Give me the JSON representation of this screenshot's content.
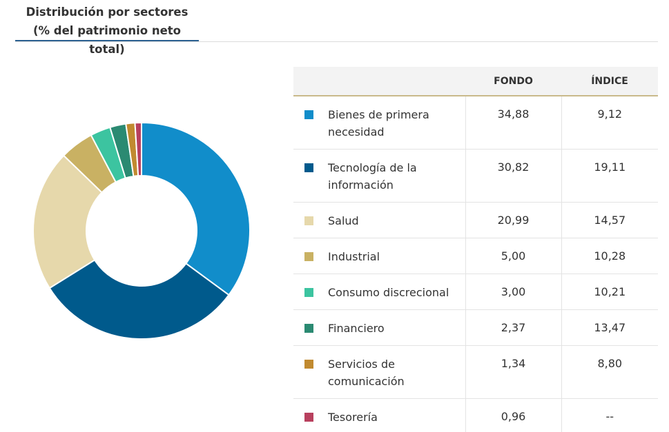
{
  "header": {
    "title_line1": "Distribución por sectores",
    "title_line2": "(% del patrimonio neto total)"
  },
  "table": {
    "col_fund": "FONDO",
    "col_index": "ÍNDICE",
    "rows": [
      {
        "label": "Bienes de primera necesidad",
        "fund": "34,88",
        "index": "9,12",
        "color": "#118dca"
      },
      {
        "label": "Tecnología de la información",
        "fund": "30,82",
        "index": "19,11",
        "color": "#005a8c"
      },
      {
        "label": "Salud",
        "fund": "20,99",
        "index": "14,57",
        "color": "#e6d8ab"
      },
      {
        "label": "Industrial",
        "fund": "5,00",
        "index": "10,28",
        "color": "#c9b163"
      },
      {
        "label": "Consumo discrecional",
        "fund": "3,00",
        "index": "10,21",
        "color": "#3cc4a0"
      },
      {
        "label": "Financiero",
        "fund": "2,37",
        "index": "13,47",
        "color": "#2b8a72"
      },
      {
        "label": "Servicios de comunicación",
        "fund": "1,34",
        "index": "8,80",
        "color": "#c18a30"
      },
      {
        "label": "Tesorería",
        "fund": "0,96",
        "index": "--",
        "color": "#b8405e"
      }
    ]
  },
  "chart_data": {
    "type": "pie",
    "donut": true,
    "title": "Distribución por sectores (% del patrimonio neto total)",
    "categories": [
      "Bienes de primera necesidad",
      "Tecnología de la información",
      "Salud",
      "Industrial",
      "Consumo discrecional",
      "Financiero",
      "Servicios de comunicación",
      "Tesorería"
    ],
    "values": [
      34.88,
      30.82,
      20.99,
      5.0,
      3.0,
      2.37,
      1.34,
      0.96
    ],
    "colors": [
      "#118dca",
      "#005a8c",
      "#e6d8ab",
      "#c9b163",
      "#3cc4a0",
      "#2b8a72",
      "#c18a30",
      "#b8405e"
    ],
    "table_series": [
      {
        "name": "FONDO",
        "values": [
          34.88,
          30.82,
          20.99,
          5.0,
          3.0,
          2.37,
          1.34,
          0.96
        ]
      },
      {
        "name": "ÍNDICE",
        "values": [
          9.12,
          19.11,
          14.57,
          10.28,
          10.21,
          13.47,
          8.8,
          null
        ]
      }
    ]
  }
}
